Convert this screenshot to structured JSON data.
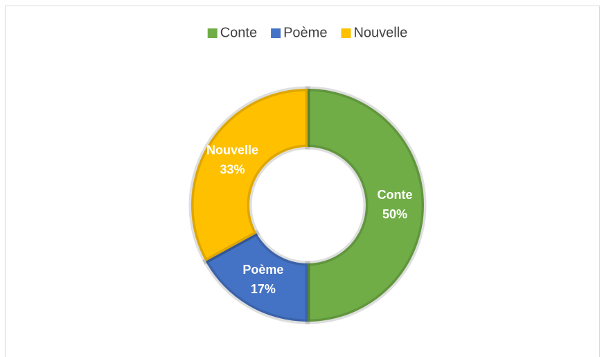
{
  "chart_data": {
    "type": "donut",
    "categories": [
      "Conte",
      "Poème",
      "Nouvelle"
    ],
    "values": [
      50,
      17,
      33
    ],
    "value_labels": [
      "50%",
      "17%",
      "33%"
    ],
    "colors": [
      "#70ad47",
      "#4472c4",
      "#ffc000"
    ],
    "legend": "top"
  }
}
